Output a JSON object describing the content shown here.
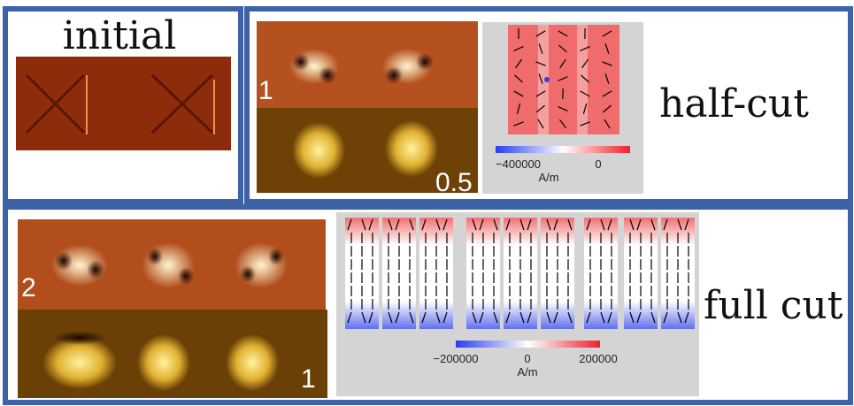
{
  "initial": {
    "title": "initial"
  },
  "half_cut": {
    "label": "half-cut",
    "image_labels": [
      "1",
      "0.5"
    ],
    "colorbar": {
      "ticks": [
        "−400000",
        "0"
      ],
      "unit": "A/m"
    }
  },
  "full_cut": {
    "label": "full cut",
    "image_labels": [
      "2",
      "1"
    ],
    "colorbar": {
      "ticks": [
        "−200000",
        "0",
        "200000"
      ],
      "unit": "A/m"
    }
  }
}
